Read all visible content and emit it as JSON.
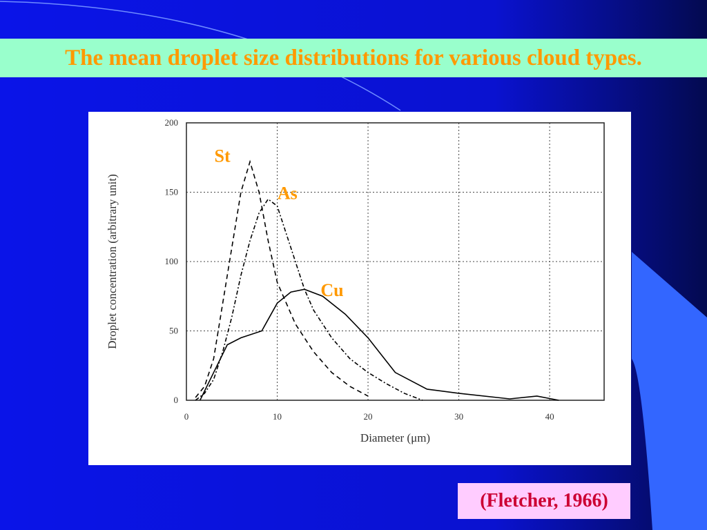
{
  "slide": {
    "title": "The mean droplet size distributions for various cloud types.",
    "citation": "(Fletcher, 1966)"
  },
  "chart_data": {
    "type": "line",
    "x_label": "Diameter (μm)",
    "y_label": "Droplet concentration (arbitrary unit)",
    "xlim": [
      0,
      46
    ],
    "ylim": [
      0,
      200
    ],
    "xticks": [
      0,
      10,
      20,
      30,
      40
    ],
    "yticks": [
      0,
      50,
      100,
      150,
      200
    ],
    "grid": true,
    "series": [
      {
        "name": "St",
        "color": "#000000",
        "dash": "dashed",
        "x": [
          1,
          2,
          3,
          4,
          5,
          6,
          7,
          8,
          9,
          10,
          12,
          14,
          16,
          18,
          20
        ],
        "values": [
          2,
          10,
          30,
          70,
          110,
          150,
          172,
          150,
          115,
          85,
          55,
          35,
          20,
          10,
          3
        ]
      },
      {
        "name": "As",
        "color": "#000000",
        "dash": "dashdot",
        "x": [
          1,
          2,
          3,
          4,
          5,
          6,
          7,
          8,
          9,
          10,
          11,
          12,
          13,
          14,
          16,
          18,
          20,
          22,
          24,
          26
        ],
        "values": [
          0,
          5,
          15,
          35,
          60,
          90,
          115,
          135,
          145,
          140,
          120,
          100,
          80,
          65,
          45,
          30,
          20,
          12,
          5,
          0
        ]
      },
      {
        "name": "Cu",
        "color": "#000000",
        "dash": "solid",
        "x": [
          1.5,
          3,
          4.5,
          6,
          8.3,
          10,
          11.5,
          13,
          15,
          17.5,
          20,
          23,
          26.5,
          30,
          35.6,
          38.6,
          41
        ],
        "values": [
          0,
          20,
          40,
          45,
          50,
          70,
          78,
          80,
          75,
          62,
          45,
          20,
          8,
          5,
          1,
          3,
          0
        ]
      }
    ]
  }
}
